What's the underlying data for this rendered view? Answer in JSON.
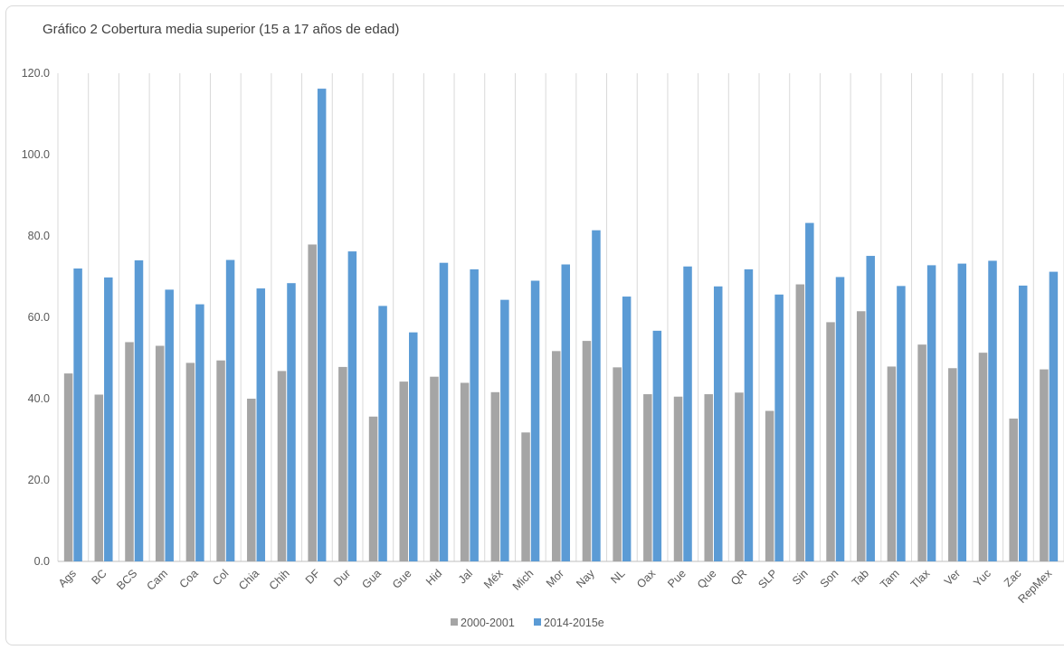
{
  "chart_data": {
    "type": "bar",
    "title": "Gráfico 2 Cobertura media superior (15 a 17 años de edad)",
    "xlabel": "",
    "ylabel": "",
    "ylim": [
      0,
      120
    ],
    "yticks": [
      "0.0",
      "20.0",
      "40.0",
      "60.0",
      "80.0",
      "100.0",
      "120.0"
    ],
    "grid": "vertical",
    "legend_position": "bottom",
    "categories": [
      "Ags",
      "BC",
      "BCS",
      "Cam",
      "Coa",
      "Col",
      "Chia",
      "Chih",
      "DF",
      "Dur",
      "Gua",
      "Gue",
      "Hid",
      "Jal",
      "Méx",
      "Mich",
      "Mor",
      "Nay",
      "NL",
      "Oax",
      "Pue",
      "Que",
      "QR",
      "SLP",
      "Sin",
      "Son",
      "Tab",
      "Tam",
      "Tlax",
      "Ver",
      "Yuc",
      "Zac",
      "RepMex"
    ],
    "series": [
      {
        "name": "2000-2001",
        "color": "#a5a5a5",
        "values": [
          46.2,
          41.0,
          53.9,
          53.0,
          48.8,
          49.4,
          40.0,
          46.8,
          77.9,
          47.8,
          35.6,
          44.2,
          45.4,
          43.9,
          41.6,
          31.7,
          51.7,
          54.2,
          47.7,
          41.1,
          40.5,
          41.1,
          41.5,
          37.0,
          68.1,
          58.8,
          61.5,
          47.9,
          53.3,
          47.5,
          51.3,
          35.1,
          47.2
        ]
      },
      {
        "name": "2014-2015e",
        "color": "#5b9bd5",
        "values": [
          72.0,
          69.8,
          74.0,
          66.8,
          63.2,
          74.1,
          67.1,
          68.4,
          116.2,
          76.2,
          62.8,
          56.3,
          73.4,
          71.8,
          64.3,
          69.0,
          73.0,
          81.4,
          65.1,
          56.7,
          72.5,
          67.6,
          71.8,
          65.6,
          83.2,
          69.9,
          75.1,
          67.7,
          72.8,
          73.2,
          73.9,
          67.8,
          71.2
        ]
      }
    ]
  }
}
